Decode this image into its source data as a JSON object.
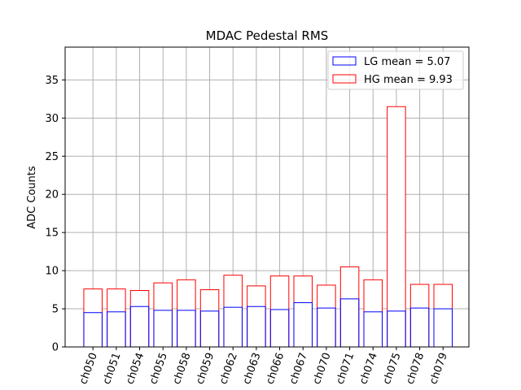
{
  "chart_data": {
    "type": "bar",
    "title": "MDAC Pedestal RMS",
    "xlabel": "",
    "ylabel": "ADC Counts",
    "ylim": [
      0,
      39.3
    ],
    "yticks": [
      0,
      5,
      10,
      15,
      20,
      25,
      30,
      35
    ],
    "grid": true,
    "legend_position": "top-right",
    "categories": [
      "ch050",
      "ch051",
      "ch054",
      "ch055",
      "ch058",
      "ch059",
      "ch062",
      "ch063",
      "ch066",
      "ch067",
      "ch070",
      "ch071",
      "ch074",
      "ch075",
      "ch078",
      "ch079"
    ],
    "series": [
      {
        "name": "LG mean = 5.07",
        "color": "#0000ff",
        "values": [
          4.5,
          4.6,
          5.3,
          4.8,
          4.8,
          4.7,
          5.2,
          5.3,
          4.9,
          5.8,
          5.1,
          6.3,
          4.6,
          4.7,
          5.1,
          5.0
        ]
      },
      {
        "name": "HG mean = 9.93",
        "color": "#ff0000",
        "values": [
          7.6,
          7.6,
          7.4,
          8.4,
          8.8,
          7.5,
          9.4,
          8.0,
          9.3,
          9.3,
          8.1,
          10.5,
          8.8,
          31.5,
          8.2,
          8.2
        ]
      }
    ]
  }
}
